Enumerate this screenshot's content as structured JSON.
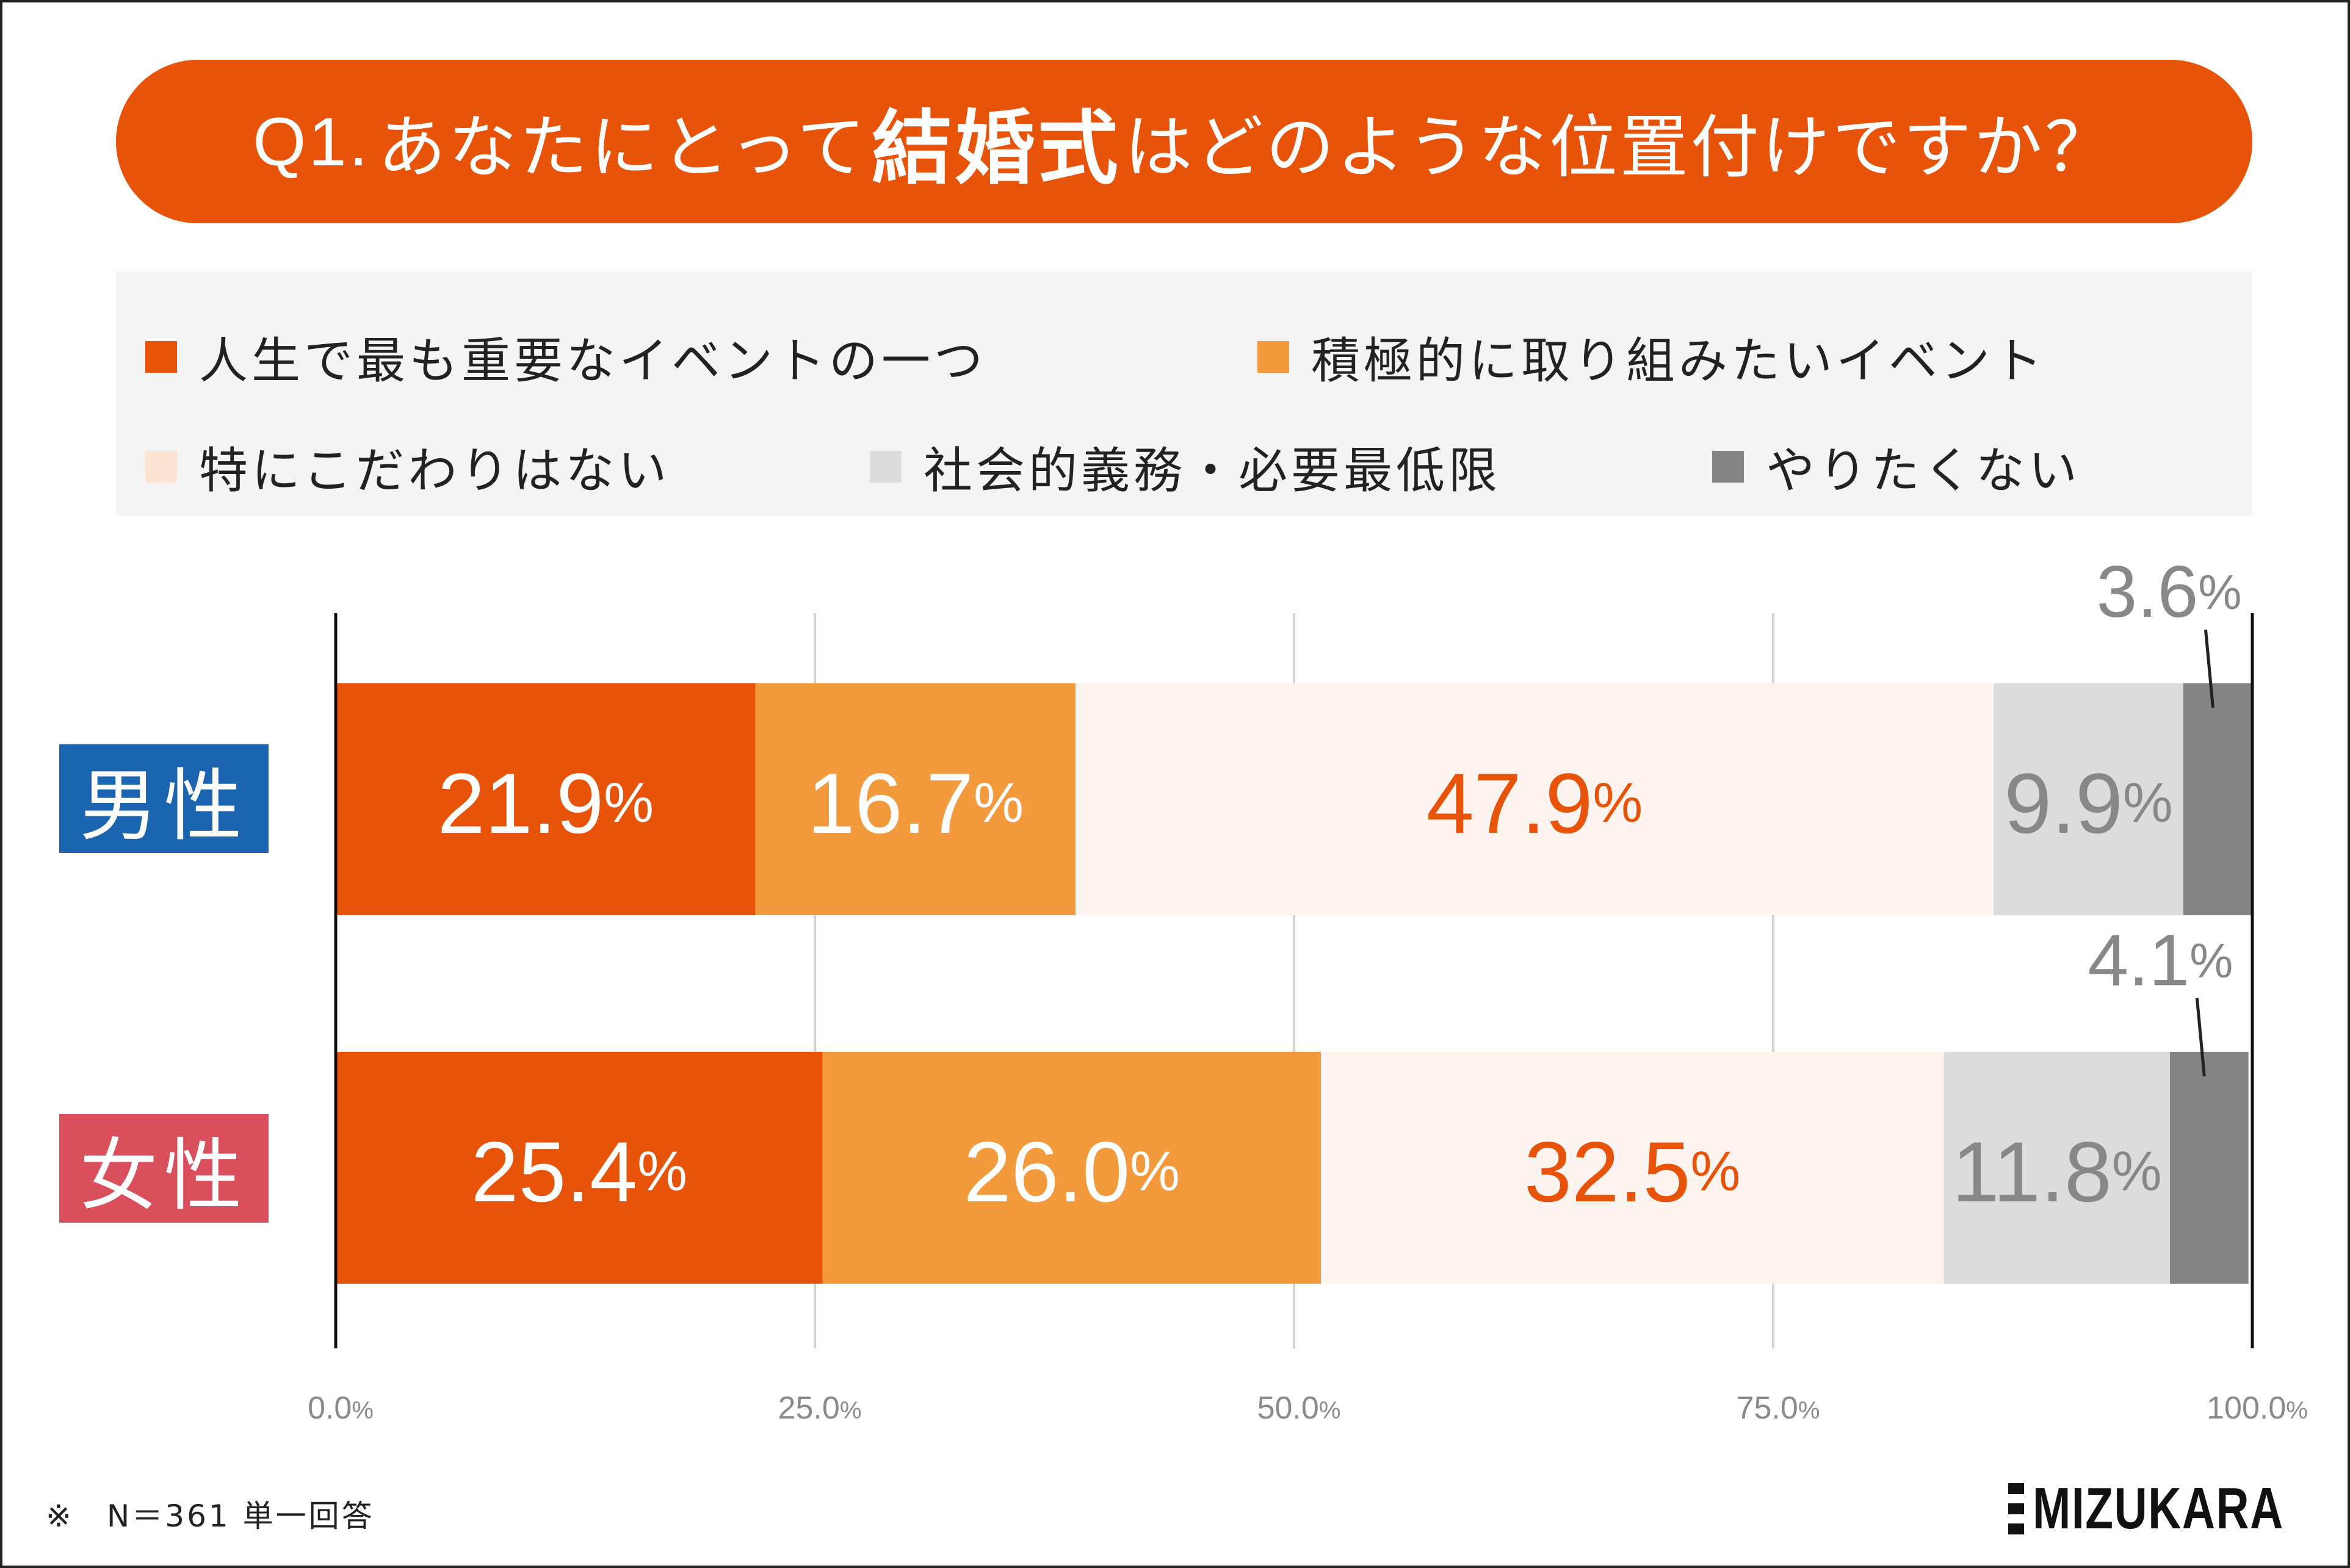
{
  "title": {
    "prefix": "Q1.",
    "part1": "あなたにとって",
    "bold": "結婚式",
    "part2": "はどのような位置付けですか？"
  },
  "legend": [
    {
      "label": "人生で最も重要なイベントの一つ",
      "color": "#e8530a"
    },
    {
      "label": "積極的に取り組みたいイベント",
      "color": "#f39a3d"
    },
    {
      "label": "特にこだわりはない",
      "color": "#fde3d4"
    },
    {
      "label": "社会的義務・必要最低限",
      "color": "#dcdcdc"
    },
    {
      "label": "やりたくない",
      "color": "#848484"
    }
  ],
  "categories": [
    {
      "label": "男性",
      "color": "#1a64b0"
    },
    {
      "label": "女性",
      "color": "#d9505c"
    }
  ],
  "chart_data": {
    "type": "bar",
    "orientation": "horizontal",
    "stacked": true,
    "categories": [
      "男性",
      "女性"
    ],
    "series": [
      {
        "name": "人生で最も重要なイベントの一つ",
        "values": [
          21.9,
          25.4
        ],
        "color": "#e8530a",
        "label_color": "#ffffff"
      },
      {
        "name": "積極的に取り組みたいイベント",
        "values": [
          16.7,
          26.0
        ],
        "color": "#f39a3d",
        "label_color": "#ffffff"
      },
      {
        "name": "特にこだわりはない",
        "values": [
          47.9,
          32.5
        ],
        "color": "#fef4ef",
        "label_color": "#e8530a"
      },
      {
        "name": "社会的義務・必要最低限",
        "values": [
          9.9,
          11.8
        ],
        "color": "#dcdcdc",
        "label_color": "#888888"
      },
      {
        "name": "やりたくない",
        "values": [
          3.6,
          4.1
        ],
        "color": "#848484",
        "label_color": "#888888"
      }
    ],
    "value_labels": [
      [
        "21.9",
        "16.7",
        "47.9",
        "9.9",
        "3.6"
      ],
      [
        "25.4",
        "26.0",
        "32.5",
        "11.8",
        "4.1"
      ]
    ],
    "percent_sign": "%",
    "xlim": [
      0,
      100
    ],
    "xticks": [
      0,
      25,
      50,
      75,
      100
    ],
    "xtick_labels": [
      "0.0%",
      "25.0%",
      "50.0%",
      "75.0%",
      "100.0%"
    ],
    "grid": true
  },
  "footnote": "※　N＝361 単一回答",
  "logo": "MIZUKARA"
}
